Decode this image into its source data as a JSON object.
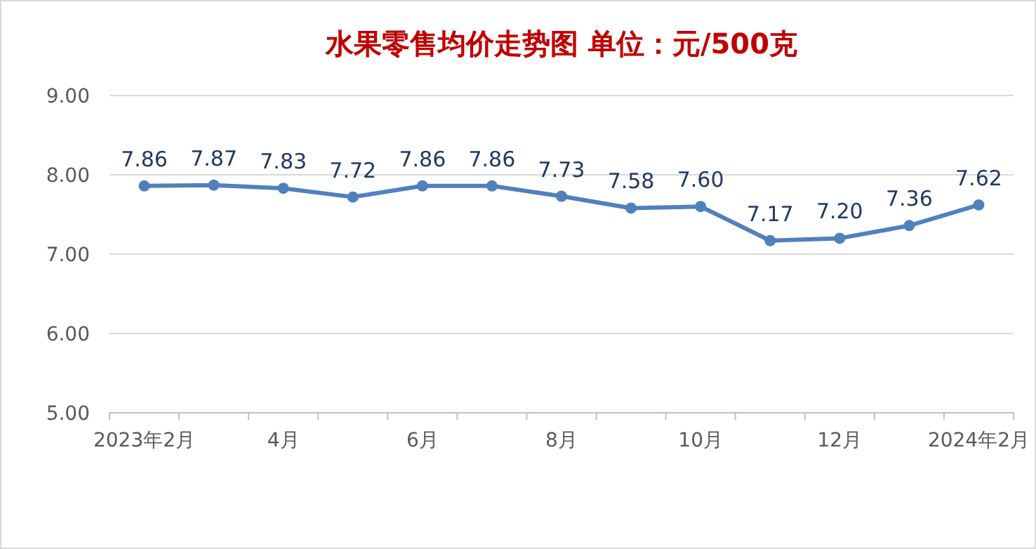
{
  "chart_data": {
    "type": "line",
    "title": "水果零售均价走势图   单位：元/500克",
    "categories": [
      "2023年2月",
      null,
      "4月",
      null,
      "6月",
      null,
      "8月",
      null,
      "10月",
      null,
      "12月",
      null,
      "2024年2月"
    ],
    "series": [
      {
        "color": "#4f81bd",
        "values": [
          7.86,
          7.87,
          7.83,
          7.72,
          7.86,
          7.86,
          7.73,
          7.58,
          7.6,
          7.17,
          7.2,
          7.36,
          7.62
        ],
        "value_labels": [
          "7.86",
          "7.87",
          "7.83",
          "7.72",
          "7.86",
          "7.86",
          "7.73",
          "7.58",
          "7.60",
          "7.17",
          "7.20",
          "7.36",
          "7.62"
        ]
      }
    ],
    "ylim": [
      5,
      9
    ],
    "yticks": [
      {
        "value": 5,
        "label": "5.00"
      },
      {
        "value": 6,
        "label": "6.00"
      },
      {
        "value": 7,
        "label": "7.00"
      },
      {
        "value": 8,
        "label": "8.00"
      },
      {
        "value": 9,
        "label": "9.00"
      }
    ],
    "grid": "y",
    "marker": "circle"
  }
}
